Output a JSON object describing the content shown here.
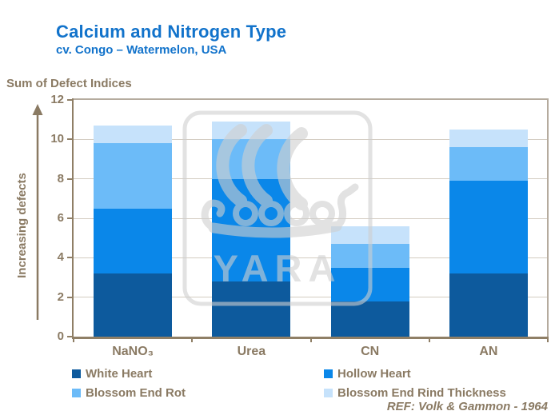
{
  "page": {
    "title": "Calcium and Nitrogen Type",
    "subtitle": "cv. Congo – Watermelon, USA",
    "axis_title": "Sum of Defect Indices",
    "y_arrow_label": "Increasing defects",
    "reference": "REF: Volk & Gammon - 1964"
  },
  "colors": {
    "title_blue": "#1273cb",
    "text_brown": "#8a7a63",
    "gridline": "#d3ccc1",
    "plot_border": "#b5ab9e",
    "axis_line": "#8f7f66",
    "watermark_gray": "#cfcfcf"
  },
  "watermark": {
    "name": "yara-logo",
    "text": "YARA"
  },
  "chart_data": {
    "type": "bar",
    "stacked": true,
    "title": "Calcium and Nitrogen Type",
    "subtitle": "cv. Congo – Watermelon, USA",
    "ylabel": "Sum of Defect Indices",
    "xlabel": "",
    "categories": [
      "NaNO₃",
      "Urea",
      "CN",
      "AN"
    ],
    "series": [
      {
        "name": "White Heart",
        "color": "#0d5a9d",
        "values": [
          3.2,
          2.8,
          1.8,
          3.2
        ]
      },
      {
        "name": "Hollow Heart",
        "color": "#0a87e9",
        "values": [
          3.3,
          5.2,
          1.7,
          4.7
        ]
      },
      {
        "name": "Blossom End Rot",
        "color": "#6cbbf8",
        "values": [
          3.3,
          2.0,
          1.2,
          1.7
        ]
      },
      {
        "name": "Blossom End Rind Thickness",
        "color": "#c6e2fb",
        "values": [
          0.9,
          0.9,
          0.9,
          0.9
        ]
      }
    ],
    "totals": [
      10.7,
      10.9,
      5.6,
      10.5
    ],
    "ylim": [
      0,
      12
    ],
    "yticks": [
      0,
      2,
      4,
      6,
      8,
      10,
      12
    ],
    "grid": true,
    "legend_position": "bottom",
    "annotations": [
      "Increasing defects",
      "REF: Volk & Gammon - 1964"
    ]
  }
}
